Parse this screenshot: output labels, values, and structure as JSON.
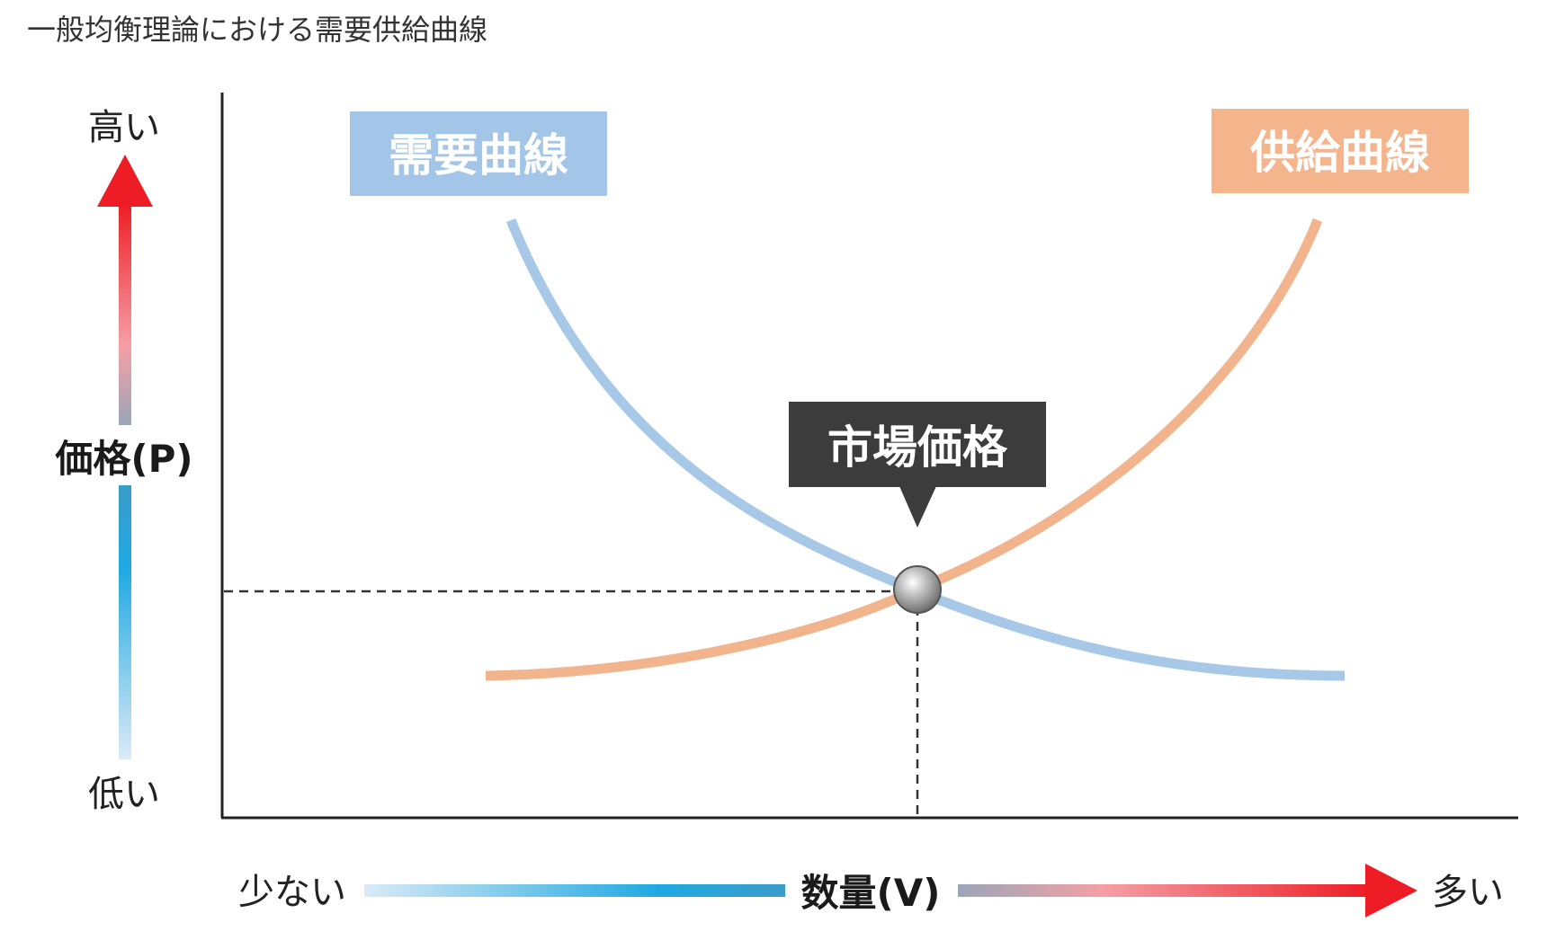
{
  "title": "一般均衡理論における需要供給曲線",
  "y_axis": {
    "label": "価格(P)",
    "high_label": "高い",
    "low_label": "低い"
  },
  "x_axis": {
    "label": "数量(V)",
    "low_label": "少ない",
    "high_label": "多い"
  },
  "curves": {
    "demand": {
      "label": "需要曲線",
      "color": "#a8c8e8",
      "label_bg": "#a3c6e8"
    },
    "supply": {
      "label": "供給曲線",
      "color": "#f2b48c",
      "label_bg": "#f4b48c"
    }
  },
  "equilibrium": {
    "label": "市場価格",
    "callout_bg": "#3c3c3c"
  },
  "colors": {
    "arrow_high": "#ee1c24",
    "arrow_low": "#1fa9e1",
    "axis": "#222222"
  }
}
